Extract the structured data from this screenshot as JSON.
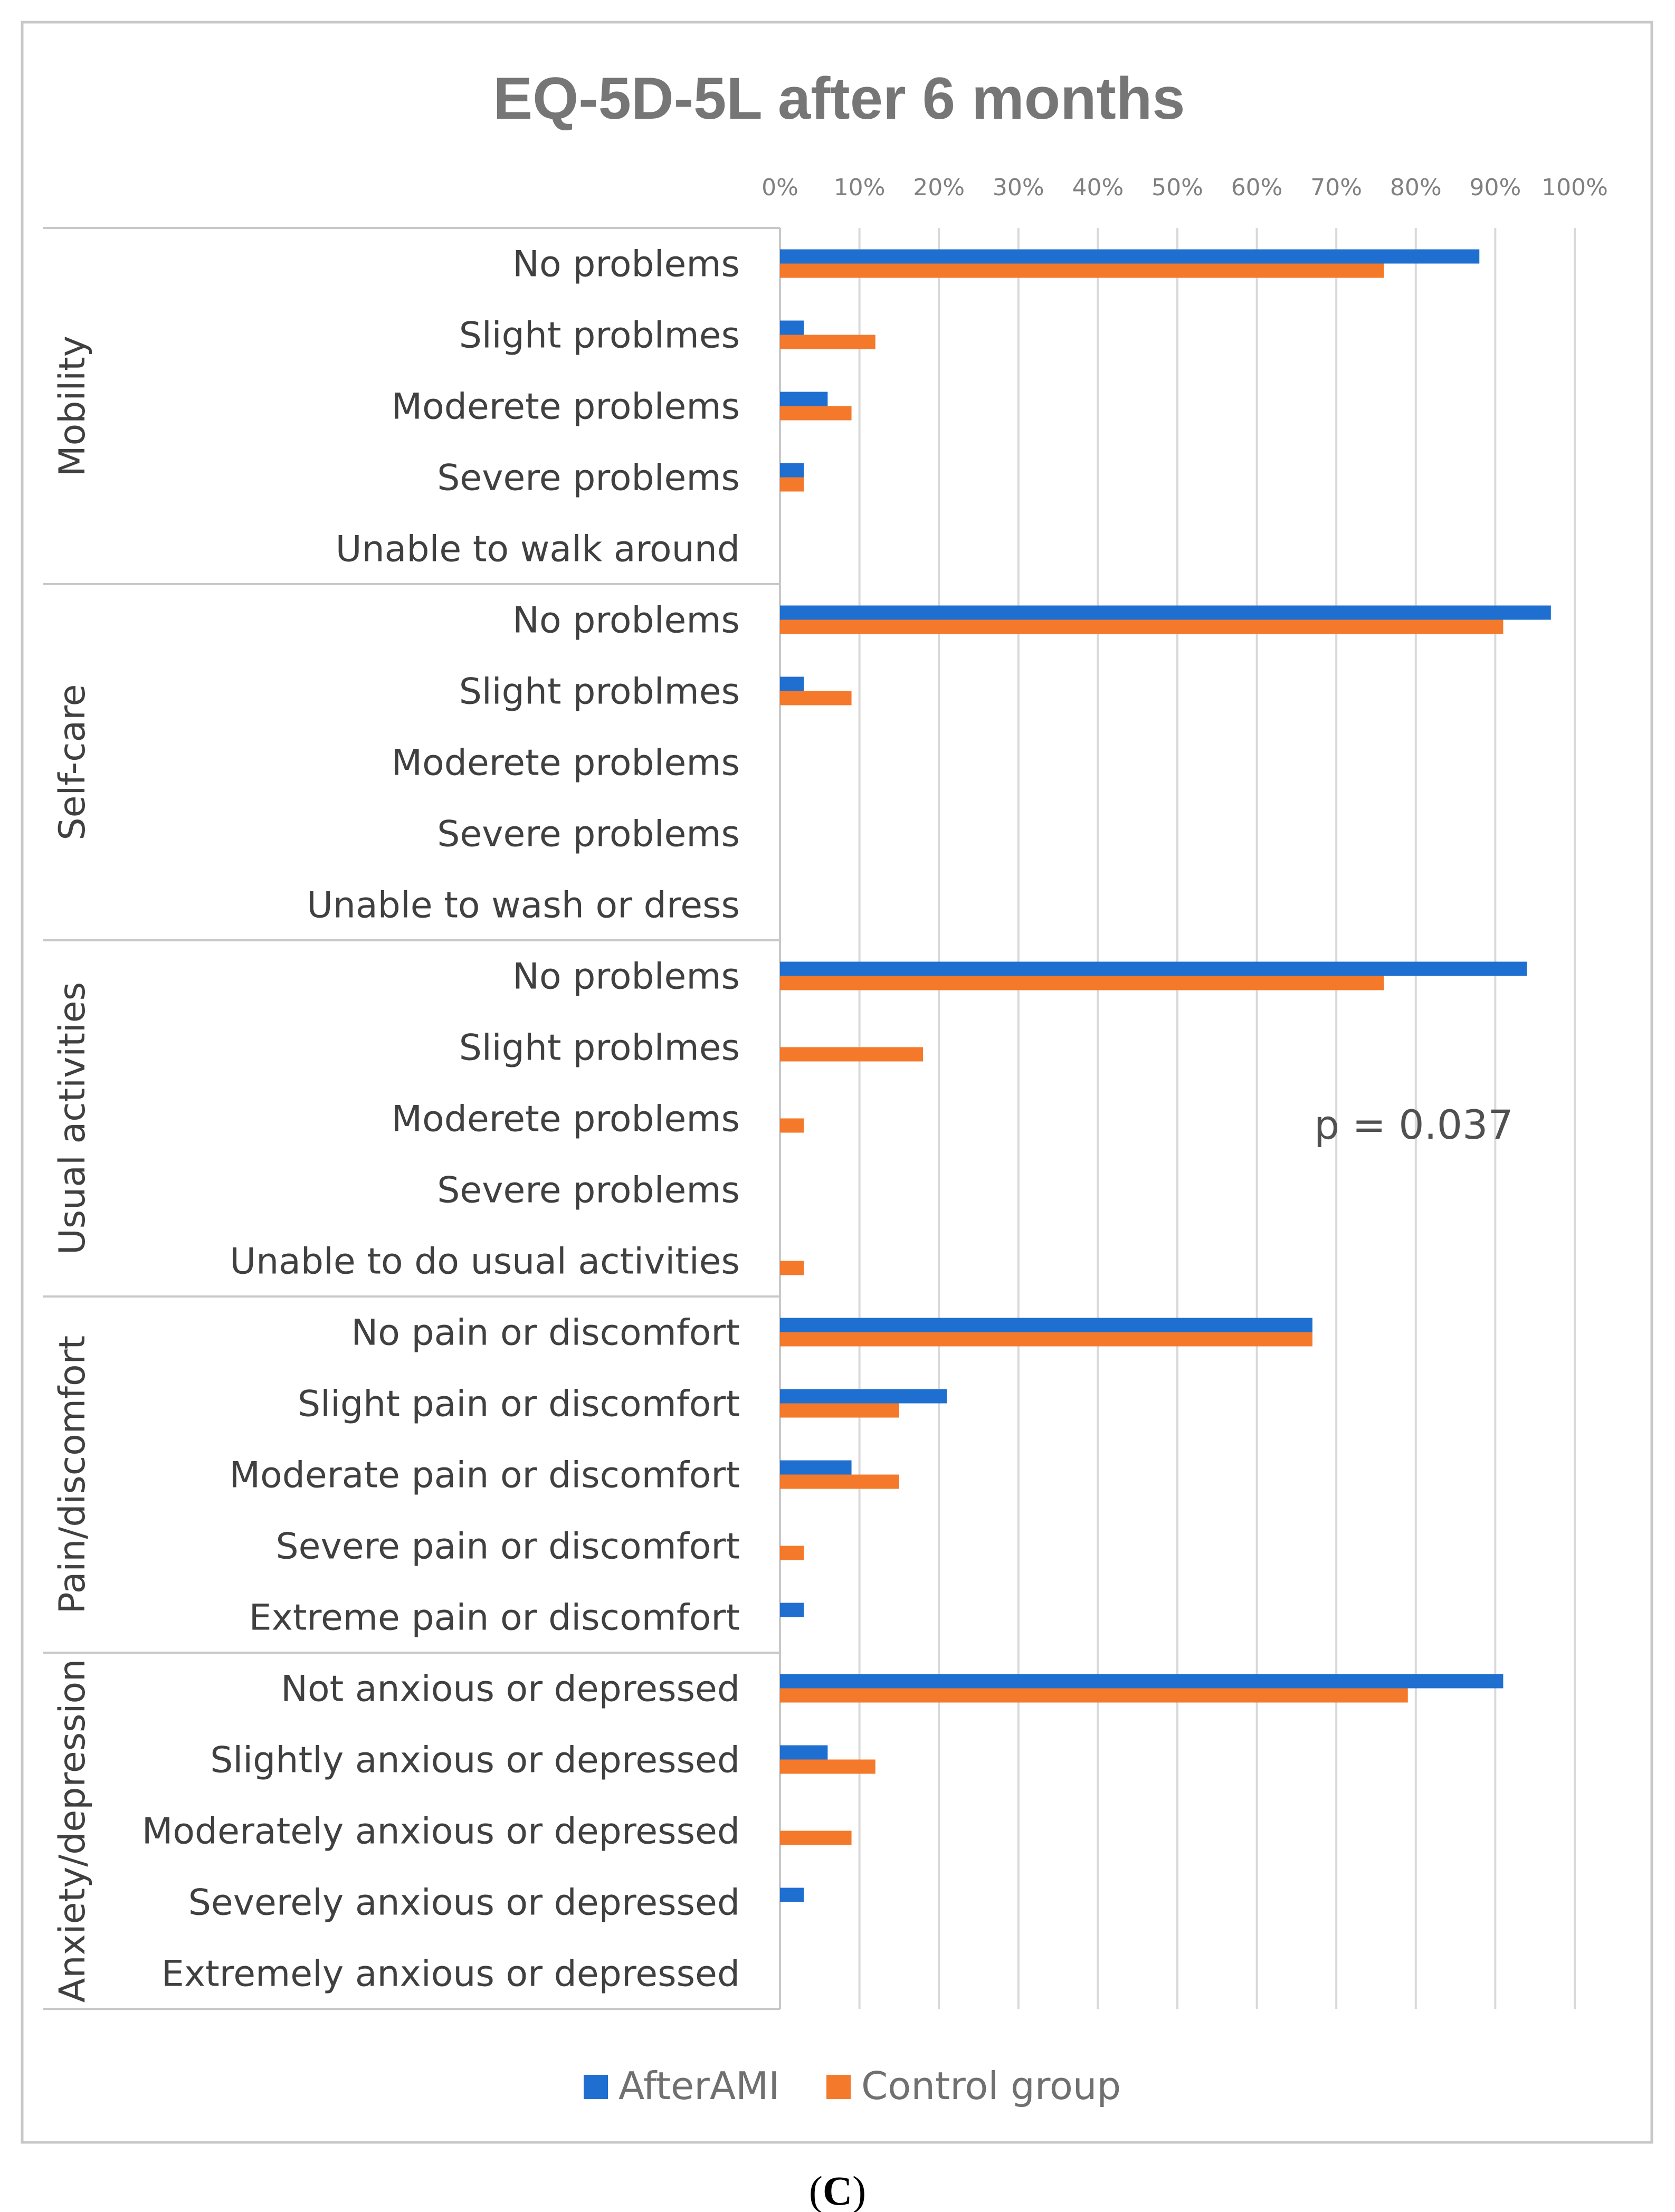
{
  "caption": {
    "open": "(",
    "letter": "C",
    "close": ")"
  },
  "chart_data": {
    "type": "bar",
    "orientation": "horizontal",
    "title": "EQ-5D-5L after 6 months",
    "xlabel": "",
    "ylabel": "",
    "xlim": [
      0,
      100
    ],
    "x_ticks": [
      "0%",
      "10%",
      "20%",
      "30%",
      "40%",
      "50%",
      "60%",
      "70%",
      "80%",
      "90%",
      "100%"
    ],
    "annotation": "p = 0.037",
    "legend": [
      "AfterAMI",
      "Control group"
    ],
    "legend_position": "bottom",
    "colors": {
      "AfterAMI": "#1f6fd1",
      "Control group": "#f5792a",
      "grid": "#d9d9d9",
      "frame": "#c8c8c8"
    },
    "groups": [
      {
        "name": "Mobility",
        "categories": [
          {
            "label": "No problems",
            "AfterAMI": 88,
            "Control": 76
          },
          {
            "label": "Slight problmes",
            "AfterAMI": 3,
            "Control": 12
          },
          {
            "label": "Moderete problems",
            "AfterAMI": 6,
            "Control": 9
          },
          {
            "label": "Severe problems",
            "AfterAMI": 3,
            "Control": 3
          },
          {
            "label": "Unable to walk around",
            "AfterAMI": 0,
            "Control": 0
          }
        ]
      },
      {
        "name": "Self-care",
        "categories": [
          {
            "label": "No problems",
            "AfterAMI": 97,
            "Control": 91
          },
          {
            "label": "Slight problmes",
            "AfterAMI": 3,
            "Control": 9
          },
          {
            "label": "Moderete problems",
            "AfterAMI": 0,
            "Control": 0
          },
          {
            "label": "Severe problems",
            "AfterAMI": 0,
            "Control": 0
          },
          {
            "label": "Unable to wash or dress",
            "AfterAMI": 0,
            "Control": 0
          }
        ]
      },
      {
        "name": "Usual activities",
        "categories": [
          {
            "label": "No problems",
            "AfterAMI": 94,
            "Control": 76
          },
          {
            "label": "Slight problmes",
            "AfterAMI": 0,
            "Control": 18
          },
          {
            "label": "Moderete problems",
            "AfterAMI": 0,
            "Control": 3
          },
          {
            "label": "Severe problems",
            "AfterAMI": 0,
            "Control": 0
          },
          {
            "label": "Unable to do usual activities",
            "AfterAMI": 0,
            "Control": 3
          }
        ]
      },
      {
        "name": "Pain/discomfort",
        "categories": [
          {
            "label": "No pain or discomfort",
            "AfterAMI": 67,
            "Control": 67
          },
          {
            "label": "Slight pain or discomfort",
            "AfterAMI": 21,
            "Control": 15
          },
          {
            "label": "Moderate pain or discomfort",
            "AfterAMI": 9,
            "Control": 15
          },
          {
            "label": "Severe pain or discomfort",
            "AfterAMI": 0,
            "Control": 3
          },
          {
            "label": "Extreme pain or discomfort",
            "AfterAMI": 3,
            "Control": 0
          }
        ]
      },
      {
        "name": "Anxiety/depression",
        "categories": [
          {
            "label": "Not anxious or depressed",
            "AfterAMI": 91,
            "Control": 79
          },
          {
            "label": "Slightly anxious or depressed",
            "AfterAMI": 6,
            "Control": 12
          },
          {
            "label": "Moderately anxious or depressed",
            "AfterAMI": 0,
            "Control": 9
          },
          {
            "label": "Severely anxious or depressed",
            "AfterAMI": 3,
            "Control": 0
          },
          {
            "label": "Extremely anxious or depressed",
            "AfterAMI": 0,
            "Control": 0
          }
        ]
      }
    ]
  }
}
